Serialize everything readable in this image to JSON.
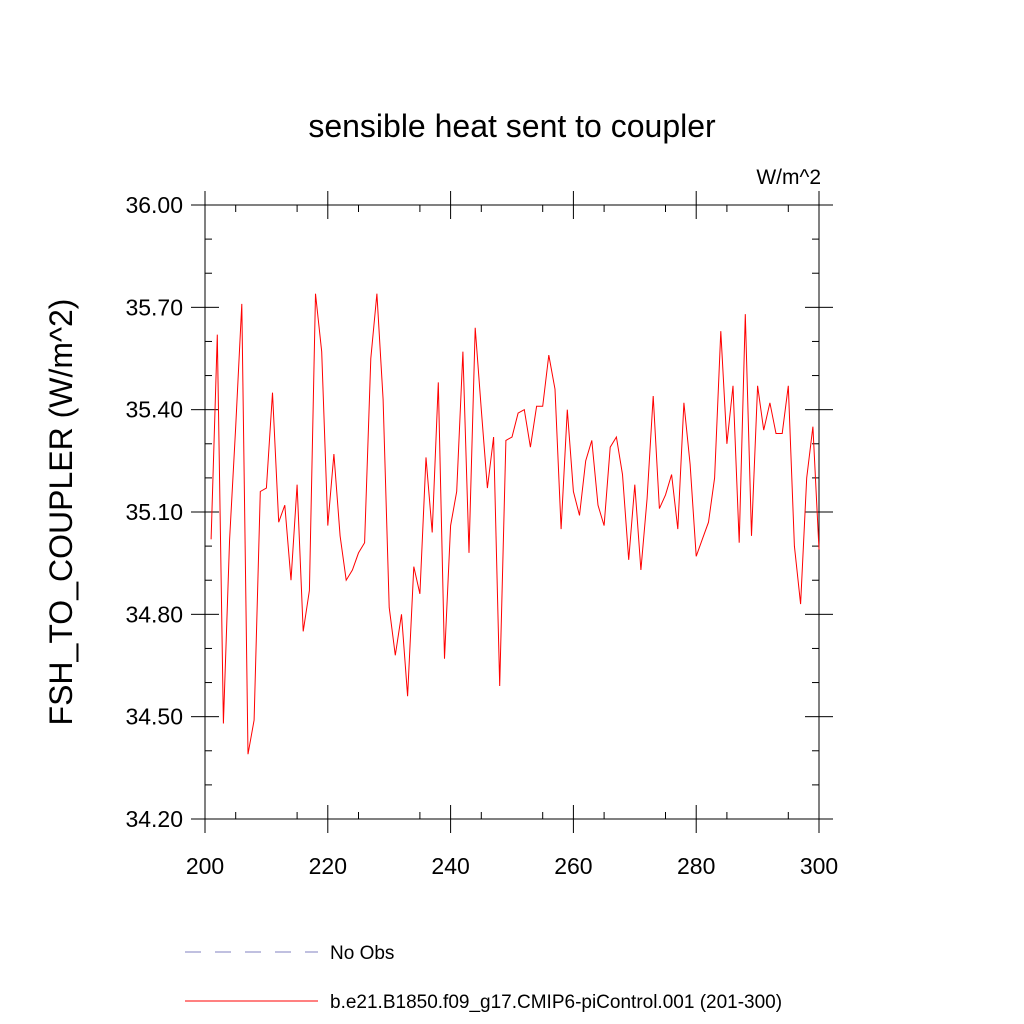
{
  "chart_data": {
    "type": "line",
    "title": "sensible heat sent to coupler",
    "units": "W/m^2",
    "ylabel": "FSH_TO_COUPLER  (W/m^2)",
    "xlabel": "",
    "xlim": [
      200,
      300
    ],
    "ylim": [
      34.2,
      36.0
    ],
    "xticks": [
      200,
      220,
      240,
      260,
      280,
      300
    ],
    "xtick_labels": [
      "200",
      "220",
      "240",
      "260",
      "280",
      "300"
    ],
    "yticks": [
      34.2,
      34.5,
      34.8,
      35.1,
      35.4,
      35.7,
      36.0
    ],
    "ytick_labels": [
      "34.20",
      "34.50",
      "34.80",
      "35.10",
      "35.40",
      "35.70",
      "36.00"
    ],
    "grid": false,
    "legend_position": "bottom",
    "legend": [
      {
        "label": "No Obs",
        "color": "#8080c0",
        "style": "dashed"
      },
      {
        "label": "b.e21.B1850.f09_g17.CMIP6-piControl.001 (201-300)",
        "color": "#ff0000",
        "style": "solid"
      }
    ],
    "series": [
      {
        "color": "#ff0000",
        "x": [
          201,
          202,
          203,
          204,
          205,
          206,
          207,
          208,
          209,
          210,
          211,
          212,
          213,
          214,
          215,
          216,
          217,
          218,
          219,
          220,
          221,
          222,
          223,
          224,
          225,
          226,
          227,
          228,
          229,
          230,
          231,
          232,
          233,
          234,
          235,
          236,
          237,
          238,
          239,
          240,
          241,
          242,
          243,
          244,
          245,
          246,
          247,
          248,
          249,
          250,
          251,
          252,
          253,
          254,
          255,
          256,
          257,
          258,
          259,
          260,
          261,
          262,
          263,
          264,
          265,
          266,
          267,
          268,
          269,
          270,
          271,
          272,
          273,
          274,
          275,
          276,
          277,
          278,
          279,
          280,
          281,
          282,
          283,
          284,
          285,
          286,
          287,
          288,
          289,
          290,
          291,
          292,
          293,
          294,
          295,
          296,
          297,
          298,
          299,
          300
        ],
        "y": [
          35.02,
          35.62,
          34.48,
          35.02,
          35.35,
          35.71,
          34.39,
          34.49,
          35.16,
          35.17,
          35.45,
          35.07,
          35.12,
          34.9,
          35.18,
          34.75,
          34.87,
          35.74,
          35.57,
          35.06,
          35.27,
          35.03,
          34.9,
          34.93,
          34.98,
          35.01,
          35.55,
          35.74,
          35.43,
          34.82,
          34.68,
          34.8,
          34.56,
          34.94,
          34.86,
          35.26,
          35.04,
          35.48,
          34.67,
          35.06,
          35.16,
          35.57,
          34.98,
          35.64,
          35.4,
          35.17,
          35.32,
          34.59,
          35.31,
          35.32,
          35.39,
          35.4,
          35.29,
          35.41,
          35.41,
          35.56,
          35.46,
          35.05,
          35.4,
          35.16,
          35.09,
          35.25,
          35.31,
          35.12,
          35.06,
          35.29,
          35.32,
          35.21,
          34.96,
          35.18,
          34.93,
          35.14,
          35.44,
          35.11,
          35.15,
          35.21,
          35.05,
          35.42,
          35.24,
          34.97,
          35.02,
          35.07,
          35.2,
          35.63,
          35.3,
          35.47,
          35.01,
          35.68,
          35.03,
          35.47,
          35.34,
          35.42,
          35.33,
          35.33,
          35.47,
          35.0,
          34.83,
          35.2,
          35.35,
          34.99
        ]
      }
    ]
  }
}
